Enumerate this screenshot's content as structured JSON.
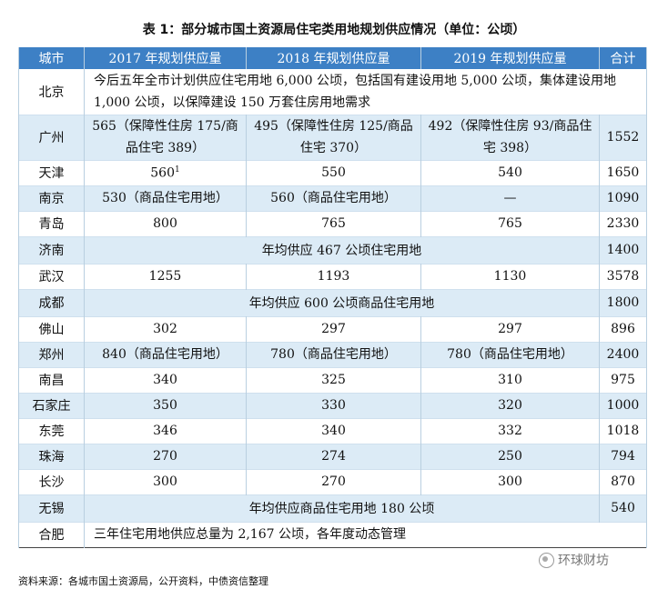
{
  "title": "表 1：部分城市国土资源局住宅类用地规划供应情况（单位：公顷）",
  "headers": {
    "city": "城市",
    "y2017": "2017 年规划供应量",
    "y2018": "2018 年规划供应量",
    "y2019": "2019 年规划供应量",
    "total": "合计"
  },
  "rows": [
    {
      "city": "北京",
      "note": "今后五年全市计划供应住宅用地 6,000 公顷，包括国有建设用地 5,000 公顷，集体建设用地 1,000 公顷，以保障建设 150 万套住房用地需求"
    },
    {
      "city": "广州",
      "y2017": "565（保障性住房 175/商品住宅 389）",
      "y2018": "495（保障性住房 125/商品住宅 370）",
      "y2019": "492（保障性住房 93/商品住宅 398）",
      "total": "1552"
    },
    {
      "city": "天津",
      "y2017": "560",
      "y2017_sup": "1",
      "y2018": "550",
      "y2019": "540",
      "total": "1650"
    },
    {
      "city": "南京",
      "y2017": "530（商品住宅用地）",
      "y2018": "560（商品住宅用地）",
      "y2019": "—",
      "total": "1090"
    },
    {
      "city": "青岛",
      "y2017": "800",
      "y2018": "765",
      "y2019": "765",
      "total": "2330"
    },
    {
      "city": "济南",
      "span": "年均供应 467 公顷住宅用地",
      "total": "1400"
    },
    {
      "city": "武汉",
      "y2017": "1255",
      "y2018": "1193",
      "y2019": "1130",
      "total": "3578"
    },
    {
      "city": "成都",
      "span": "年均供应 600 公顷商品住宅用地",
      "total": "1800"
    },
    {
      "city": "佛山",
      "y2017": "302",
      "y2018": "297",
      "y2019": "297",
      "total": "896"
    },
    {
      "city": "郑州",
      "y2017": "840（商品住宅用地）",
      "y2018": "780（商品住宅用地）",
      "y2019": "780（商品住宅用地）",
      "total": "2400"
    },
    {
      "city": "南昌",
      "y2017": "340",
      "y2018": "325",
      "y2019": "310",
      "total": "975"
    },
    {
      "city": "石家庄",
      "y2017": "350",
      "y2018": "330",
      "y2019": "320",
      "total": "1000"
    },
    {
      "city": "东莞",
      "y2017": "346",
      "y2018": "340",
      "y2019": "332",
      "total": "1018"
    },
    {
      "city": "珠海",
      "y2017": "270",
      "y2018": "274",
      "y2019": "250",
      "total": "794"
    },
    {
      "city": "长沙",
      "y2017": "300",
      "y2018": "270",
      "y2019": "300",
      "total": "870"
    },
    {
      "city": "无锡",
      "span": "年均供应商品住宅用地 180 公顷",
      "total": "540"
    },
    {
      "city": "合肥",
      "note": "三年住宅用地供应总量为 2,167 公顷，各年度动态管理"
    }
  ],
  "source": "资料来源：各城市国土资源局，公开资料，中债资信整理",
  "watermark": "环球财坊"
}
